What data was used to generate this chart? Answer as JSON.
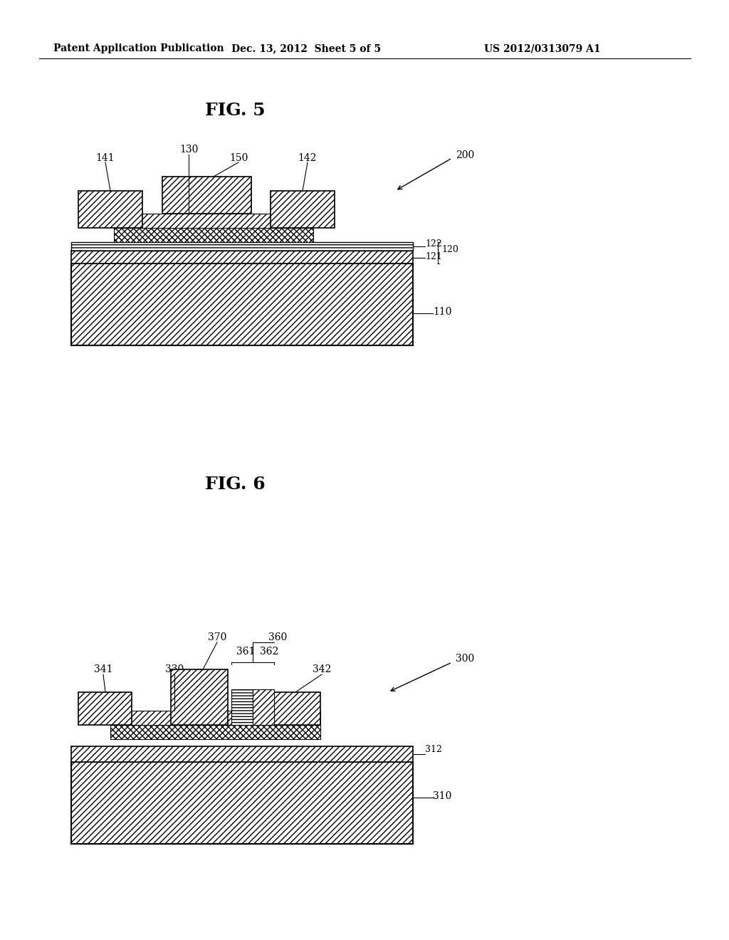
{
  "bg_color": "#ffffff",
  "header_left": "Patent Application Publication",
  "header_mid": "Dec. 13, 2012  Sheet 5 of 5",
  "header_right": "US 2012/0313079 A1",
  "fig5_title": "FIG. 5",
  "fig6_title": "FIG. 6"
}
